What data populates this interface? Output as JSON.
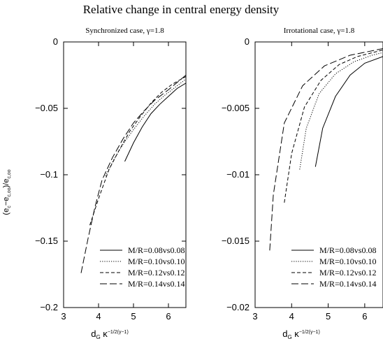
{
  "figure": {
    "title": "Relative change in central energy density",
    "ylabel_main": "(e",
    "ylabel_sub1": "c",
    "ylabel_mid": "−e",
    "ylabel_sub2": "c,oo",
    "ylabel_mid2": ")/e",
    "ylabel_sub3": "c,oo",
    "xlabel_main": "d",
    "xlabel_sub": "G",
    "xlabel_kappa": " κ",
    "xlabel_sup": "−1/2(γ−1)"
  },
  "chart_data": [
    {
      "type": "line",
      "title": "Synchronized case, γ=1.8",
      "xlim": [
        3,
        6.5
      ],
      "ylim": [
        -0.2,
        0
      ],
      "xticks": [
        3,
        4,
        5,
        6
      ],
      "yticks": [
        0,
        -0.05,
        -0.1,
        -0.15,
        -0.2
      ],
      "ytick_labels": [
        "0",
        "−0.05",
        "−0.1",
        "−0.15",
        "−0.2"
      ],
      "legend_position": "bottom-right",
      "series": [
        {
          "name": "M/R=0.08vs0.08",
          "style": "solid",
          "x": [
            4.75,
            5.0,
            5.25,
            5.5,
            5.75,
            6.0,
            6.25,
            6.5
          ],
          "y": [
            -0.09,
            -0.076,
            -0.064,
            -0.054,
            -0.047,
            -0.041,
            -0.035,
            -0.031
          ]
        },
        {
          "name": "M/R=0.10vs0.10",
          "style": "dotted",
          "x": [
            4.2,
            4.45,
            4.7,
            5.0,
            5.3,
            5.6,
            5.9,
            6.2,
            6.5
          ],
          "y": [
            -0.101,
            -0.088,
            -0.077,
            -0.066,
            -0.056,
            -0.047,
            -0.04,
            -0.034,
            -0.028
          ]
        },
        {
          "name": "M/R=0.12vs0.12",
          "style": "dashed",
          "x": [
            3.75,
            4.0,
            4.3,
            4.6,
            4.9,
            5.2,
            5.5,
            5.8,
            6.1,
            6.5
          ],
          "y": [
            -0.138,
            -0.118,
            -0.096,
            -0.081,
            -0.067,
            -0.056,
            -0.046,
            -0.038,
            -0.032,
            -0.026
          ]
        },
        {
          "name": "M/R=0.14vs0.14",
          "style": "longdash",
          "x": [
            3.5,
            3.7,
            3.9,
            4.1,
            4.4,
            4.7,
            5.0,
            5.3,
            5.6,
            6.0,
            6.5
          ],
          "y": [
            -0.174,
            -0.148,
            -0.124,
            -0.104,
            -0.087,
            -0.073,
            -0.061,
            -0.052,
            -0.044,
            -0.036,
            -0.025
          ]
        }
      ]
    },
    {
      "type": "line",
      "title": "Irrotational case, γ=1.8",
      "xlim": [
        3,
        6.5
      ],
      "ylim": [
        -0.02,
        0
      ],
      "xticks": [
        3,
        4,
        5,
        6
      ],
      "yticks": [
        0,
        -0.005,
        -0.01,
        -0.015,
        -0.02
      ],
      "ytick_labels": [
        "0",
        "−0.005",
        "−0.01",
        "−0.015",
        "−0.02"
      ],
      "legend_position": "bottom-right",
      "series": [
        {
          "name": "M/R=0.08vs0.08",
          "style": "solid",
          "x": [
            4.65,
            4.85,
            5.2,
            5.6,
            6.0,
            6.5
          ],
          "y": [
            -0.0094,
            -0.0065,
            -0.0041,
            -0.0025,
            -0.0016,
            -0.0011
          ]
        },
        {
          "name": "M/R=0.10vs0.10",
          "style": "dotted",
          "x": [
            4.22,
            4.4,
            4.75,
            5.2,
            5.7,
            6.2,
            6.5
          ],
          "y": [
            -0.0096,
            -0.0065,
            -0.0039,
            -0.0024,
            -0.0015,
            -0.001,
            -0.0008
          ]
        },
        {
          "name": "M/R=0.12vs0.12",
          "style": "dashed",
          "x": [
            3.8,
            4.0,
            4.35,
            4.8,
            5.3,
            5.8,
            6.5
          ],
          "y": [
            -0.0121,
            -0.0084,
            -0.0049,
            -0.0029,
            -0.0017,
            -0.0011,
            -0.0006
          ]
        },
        {
          "name": "M/R=0.14vs0.14",
          "style": "longdash",
          "x": [
            3.4,
            3.5,
            3.8,
            4.3,
            4.9,
            5.6,
            6.5
          ],
          "y": [
            -0.0157,
            -0.0115,
            -0.0061,
            -0.0033,
            -0.0018,
            -0.001,
            -0.0005
          ]
        }
      ]
    }
  ]
}
